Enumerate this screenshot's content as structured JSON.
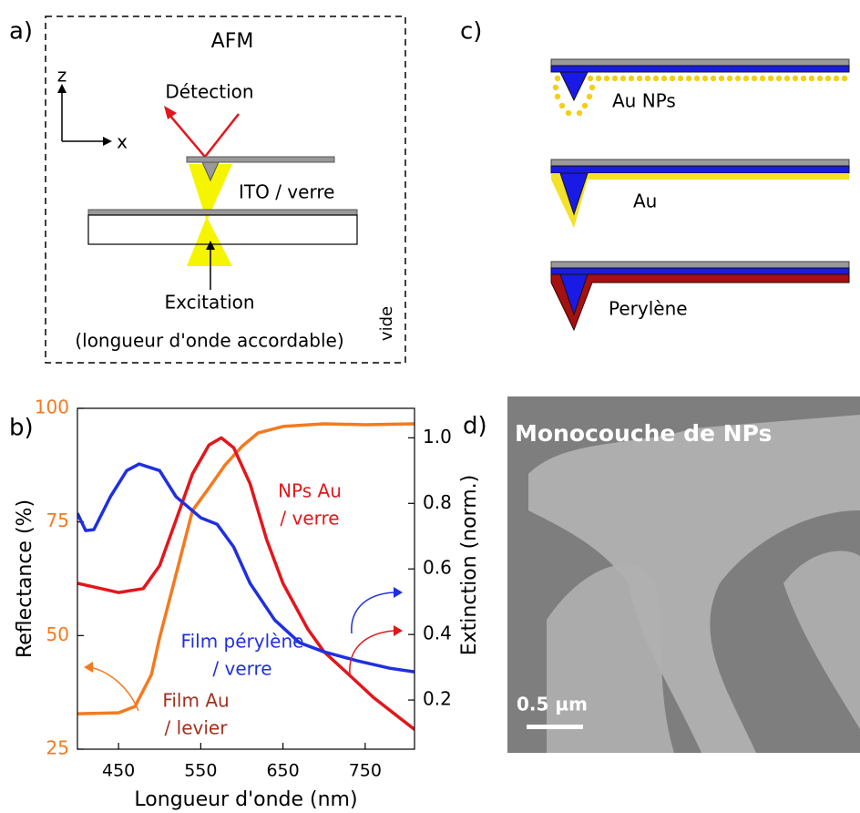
{
  "panel_a": {
    "letter": "a)",
    "title": "AFM",
    "axis_z": "z",
    "axis_x": "x",
    "detection": "Détection",
    "substrate": "ITO / verre",
    "excitation": "Excitation",
    "excitation_note": "(longueur d'onde accordable)",
    "medium": "vide"
  },
  "panel_c": {
    "letter": "c)",
    "labels": [
      "Au NPs",
      "Au",
      "Perylène"
    ]
  },
  "panel_d": {
    "letter": "d)",
    "title": "Monocouche de NPs",
    "scale_bar": "0.5 µm"
  },
  "chart_data": {
    "type": "line",
    "letter": "b)",
    "x_label": "Longueur d'onde (nm)",
    "y_label": "Reflectance (%)",
    "y2_label": "Extinction (norm.)",
    "xlim": [
      400,
      810
    ],
    "xticks": [
      450,
      550,
      650,
      750
    ],
    "ylim": [
      25,
      100
    ],
    "yticks": [
      25,
      50,
      75,
      100
    ],
    "y_tick_color": "#f47a1f",
    "y2lim": [
      0.05,
      1.09
    ],
    "y2ticks": [
      0.2,
      0.4,
      0.6,
      0.8,
      {
        "value": 1,
        "label": "1.0"
      }
    ],
    "series": [
      {
        "label_lines": [
          "Film Au",
          "/ levier"
        ],
        "label_color": "#a3301e",
        "color": "#f47a1f",
        "axis": "y",
        "x": [
          400,
          450,
          470,
          490,
          500,
          520,
          540,
          560,
          580,
          600,
          620,
          650,
          700,
          750,
          810
        ],
        "values": [
          32.8,
          33,
          34.4,
          41.4,
          49.5,
          63.5,
          77.5,
          82.5,
          87.6,
          91.6,
          94.6,
          96,
          96.6,
          96.4,
          96.6
        ]
      },
      {
        "label_lines": [
          "NPs Au",
          "/ verre"
        ],
        "label_color": "#e3161b",
        "color": "#e3161b",
        "axis": "y2",
        "x": [
          400,
          450,
          480,
          500,
          520,
          540,
          560,
          575,
          590,
          610,
          630,
          650,
          680,
          700,
          730,
          760,
          810
        ],
        "values": [
          0.556,
          0.528,
          0.54,
          0.61,
          0.75,
          0.89,
          0.978,
          1.0,
          0.97,
          0.86,
          0.69,
          0.556,
          0.417,
          0.347,
          0.278,
          0.208,
          0.11
        ]
      },
      {
        "label_lines": [
          "Film pérylène",
          "/ verre"
        ],
        "label_color": "#1f2fe0",
        "color": "#1f2fe0",
        "axis": "y2",
        "x": [
          400,
          410,
          420,
          440,
          460,
          475,
          500,
          520,
          550,
          570,
          590,
          610,
          640,
          670,
          700,
          740,
          780,
          810
        ],
        "values": [
          0.77,
          0.717,
          0.72,
          0.82,
          0.9,
          0.92,
          0.9,
          0.82,
          0.756,
          0.736,
          0.667,
          0.556,
          0.444,
          0.375,
          0.347,
          0.32,
          0.297,
          0.286
        ]
      }
    ]
  }
}
